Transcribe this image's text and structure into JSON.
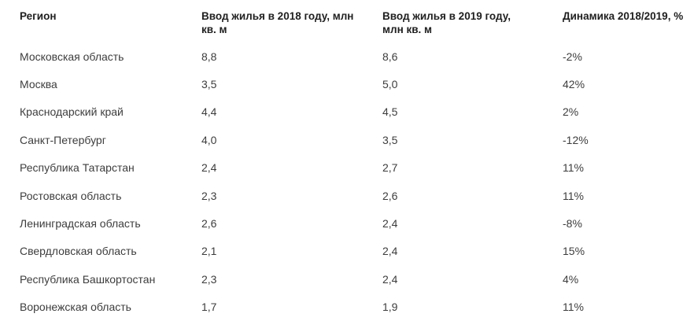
{
  "colors": {
    "background": "#ffffff",
    "header_text": "#1f1f1f",
    "body_text": "#3d3d3d"
  },
  "chart_data": {
    "type": "table",
    "columns": [
      "Регион",
      "Ввод жилья в 2018 году, млн кв. м",
      "Ввод жилья в 2019 году, млн кв. м",
      "Динамика 2018/2019, %"
    ],
    "rows": [
      [
        "Московская область",
        "8,8",
        "8,6",
        "-2%"
      ],
      [
        "Москва",
        "3,5",
        "5,0",
        "42%"
      ],
      [
        "Краснодарский край",
        "4,4",
        "4,5",
        "2%"
      ],
      [
        "Санкт-Петербург",
        "4,0",
        "3,5",
        "-12%"
      ],
      [
        "Республика Татарстан",
        "2,4",
        "2,7",
        "11%"
      ],
      [
        "Ростовская область",
        "2,3",
        "2,6",
        "11%"
      ],
      [
        "Ленинградская область",
        "2,6",
        "2,4",
        "-8%"
      ],
      [
        "Свердловская область",
        "2,1",
        "2,4",
        "15%"
      ],
      [
        "Республика Башкортостан",
        "2,3",
        "2,4",
        "4%"
      ],
      [
        "Воронежская область",
        "1,7",
        "1,9",
        "11%"
      ]
    ]
  }
}
